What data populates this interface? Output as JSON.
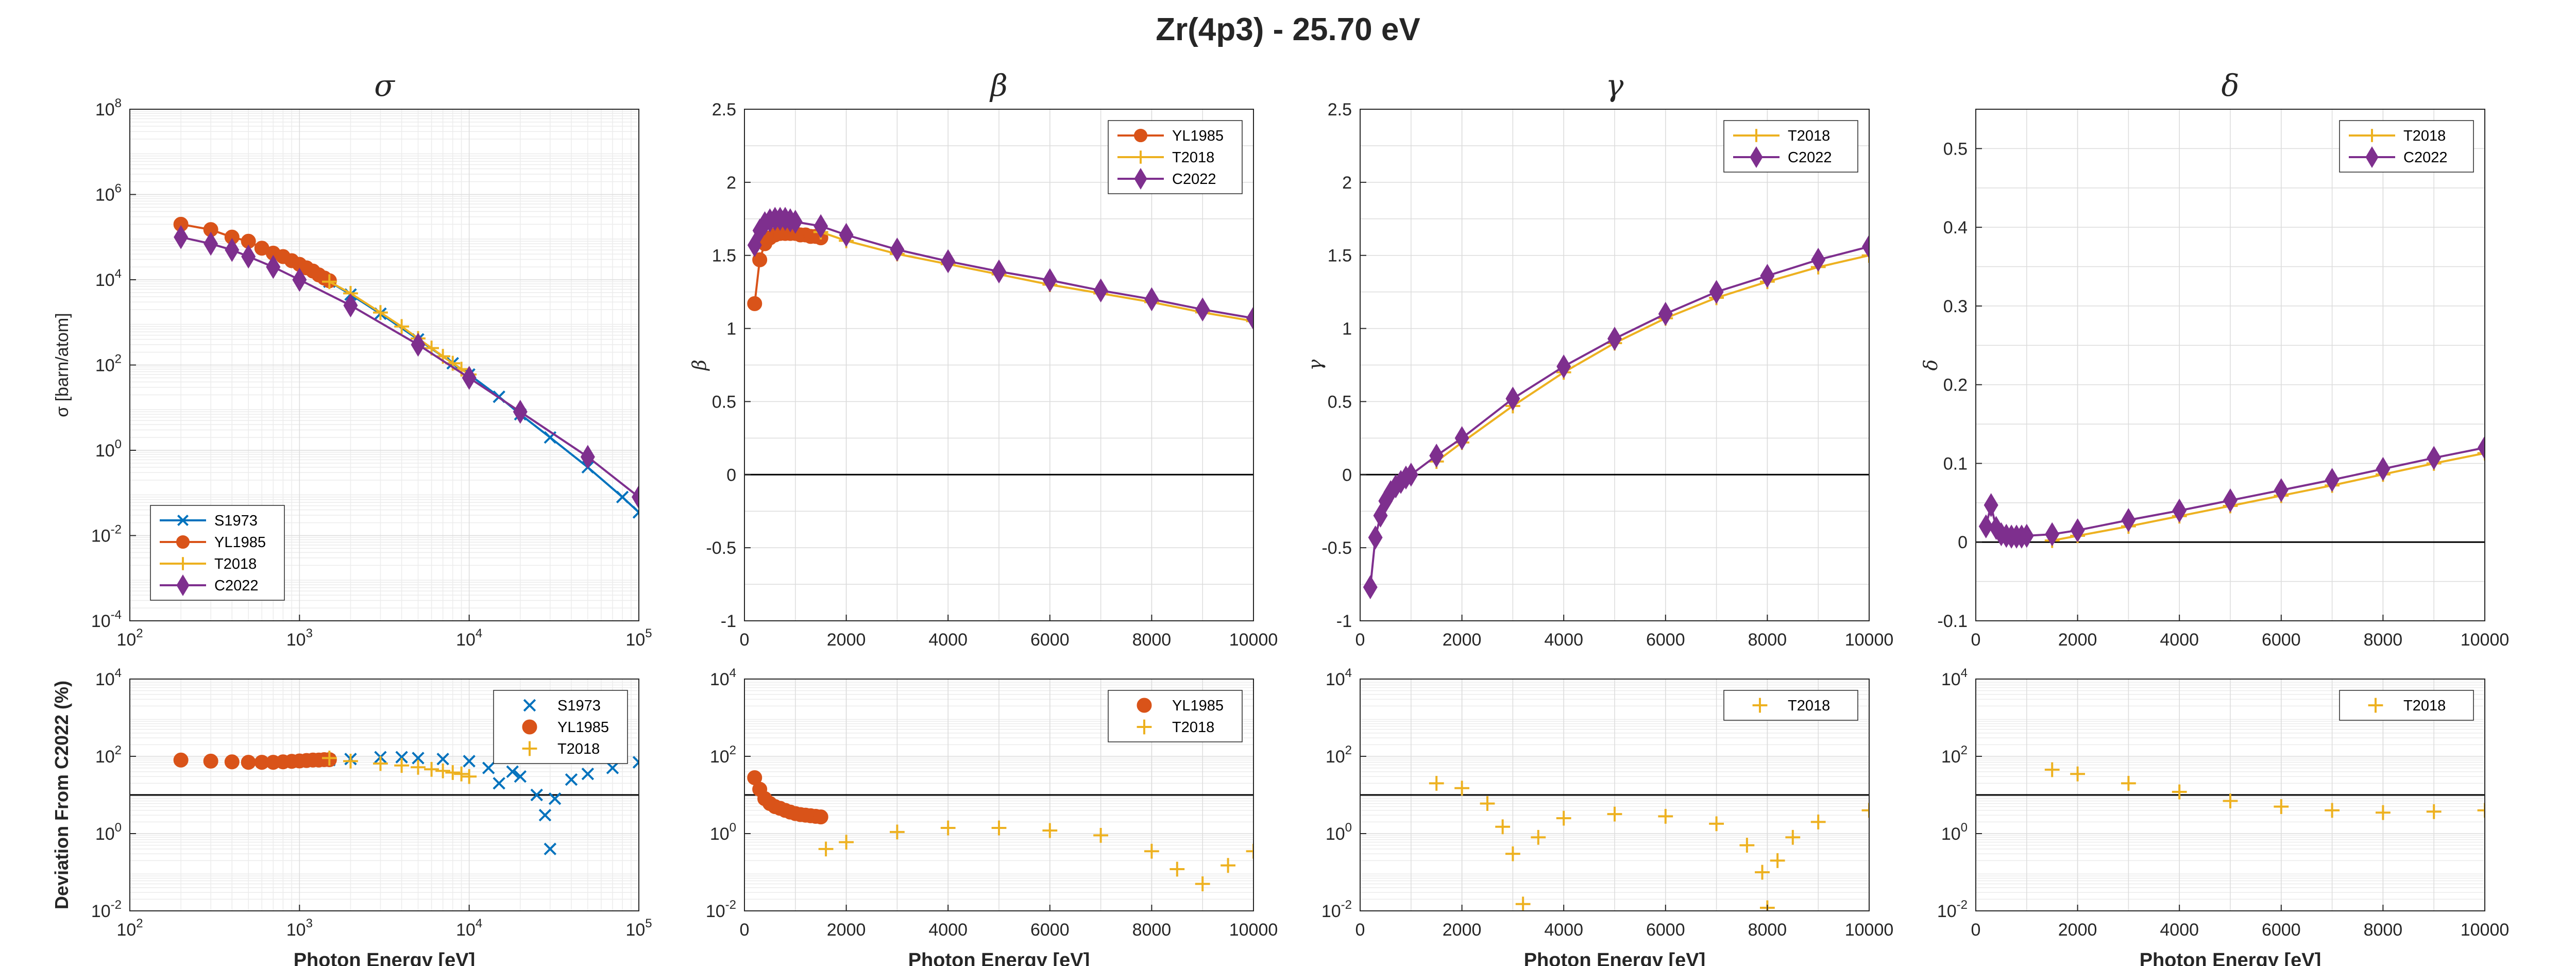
{
  "figure": {
    "title": "Zr(4p3) - 25.70 eV",
    "xlabel": "Photon Energy [eV]",
    "ylabel_cs": "σ [barn/atom]",
    "ylabel_dev": "Deviation From C2022 (%)"
  },
  "colors": {
    "S1973": "#0072BD",
    "YL1985": "#D95319",
    "T2018": "#EDB120",
    "C2022": "#7E2F8E",
    "axis": "#262626",
    "grid": "#dcdcdc",
    "minor_band": "#f2f2f2",
    "zero_line": "#000000"
  },
  "chart_data": [
    {
      "id": "sigma",
      "type": "line",
      "title": "σ",
      "ylabel": "σ [barn/atom]",
      "xlabel": "",
      "xscale": "log",
      "yscale": "log",
      "xlim": [
        100,
        100000
      ],
      "ylim": [
        0.0001,
        100000000
      ],
      "xticks": [
        100,
        1000,
        10000,
        100000
      ],
      "xtick_labels": [
        "10|2",
        "10|3",
        "10|4",
        "10|5"
      ],
      "yticks": [
        0.0001,
        0.01,
        1,
        100,
        10000,
        1000000,
        100000000
      ],
      "ytick_labels": [
        "10|-4",
        "10|-2",
        "10|0",
        "10|2",
        "10|4",
        "10|6",
        "10|8"
      ],
      "legend": {
        "position": "bottom-left",
        "entries": [
          "S1973",
          "YL1985",
          "T2018",
          "C2022"
        ]
      },
      "series": [
        {
          "name": "S1973",
          "marker": "x",
          "x": [
            1500,
            2000,
            3000,
            5000,
            8000,
            10000,
            15000,
            20000,
            30000,
            50000,
            80000,
            100000
          ],
          "y": [
            9000,
            4500,
            1600,
            400,
            110,
            60,
            18,
            7,
            2,
            0.4,
            0.08,
            0.035
          ]
        },
        {
          "name": "YL1985",
          "marker": "o",
          "x": [
            200,
            300,
            400,
            500,
            600,
            700,
            800,
            900,
            1000,
            1100,
            1200,
            1300,
            1400,
            1500
          ],
          "y": [
            200000,
            150000,
            100000,
            80000,
            55000,
            42000,
            35000,
            28000,
            23000,
            19000,
            16000,
            13000,
            11000,
            9500
          ]
        },
        {
          "name": "T2018",
          "marker": "+",
          "x": [
            1500,
            2000,
            3000,
            4000,
            5000,
            6000,
            7000,
            8000,
            9000,
            10000
          ],
          "y": [
            9000,
            4800,
            1700,
            800,
            420,
            250,
            160,
            110,
            80,
            60
          ]
        },
        {
          "name": "C2022",
          "marker": "d",
          "x": [
            200,
            300,
            400,
            500,
            700,
            1000,
            2000,
            5000,
            10000,
            20000,
            50000,
            100000
          ],
          "y": [
            100000,
            70000,
            50000,
            35000,
            20000,
            10000,
            2500,
            300,
            50,
            8,
            0.7,
            0.08
          ]
        }
      ]
    },
    {
      "id": "beta",
      "type": "line",
      "title": "β",
      "ylabel": "β",
      "xlabel": "",
      "xscale": "linear",
      "yscale": "linear",
      "xlim": [
        0,
        10000
      ],
      "ylim": [
        -1,
        2.5
      ],
      "xticks": [
        0,
        2000,
        4000,
        6000,
        8000,
        10000
      ],
      "xtick_labels": [
        "0",
        "2000",
        "4000",
        "6000",
        "8000",
        "10000"
      ],
      "yticks": [
        -1,
        -0.5,
        0,
        0.5,
        1,
        1.5,
        2,
        2.5
      ],
      "ytick_labels": [
        "-1",
        "-0.5",
        "0",
        "0.5",
        "1",
        "1.5",
        "2",
        "2.5"
      ],
      "hline": 0,
      "legend": {
        "position": "top-right",
        "entries": [
          "YL1985",
          "T2018",
          "C2022"
        ]
      },
      "series": [
        {
          "name": "YL1985",
          "marker": "o",
          "x": [
            200,
            300,
            400,
            500,
            600,
            700,
            800,
            900,
            1000,
            1100,
            1200,
            1300,
            1400,
            1500
          ],
          "y": [
            1.17,
            1.47,
            1.58,
            1.62,
            1.64,
            1.65,
            1.65,
            1.65,
            1.65,
            1.64,
            1.64,
            1.63,
            1.63,
            1.62
          ]
        },
        {
          "name": "T2018",
          "marker": "+",
          "x": [
            1500,
            2000,
            3000,
            4000,
            5000,
            6000,
            7000,
            8000,
            9000,
            10000
          ],
          "y": [
            1.66,
            1.6,
            1.51,
            1.44,
            1.37,
            1.3,
            1.24,
            1.18,
            1.11,
            1.05
          ]
        },
        {
          "name": "C2022",
          "marker": "d",
          "x": [
            200,
            300,
            400,
            500,
            600,
            700,
            800,
            900,
            1000,
            1500,
            2000,
            3000,
            4000,
            5000,
            6000,
            7000,
            8000,
            9000,
            10000
          ],
          "y": [
            1.57,
            1.67,
            1.72,
            1.74,
            1.75,
            1.75,
            1.75,
            1.74,
            1.73,
            1.7,
            1.64,
            1.54,
            1.46,
            1.39,
            1.33,
            1.26,
            1.2,
            1.13,
            1.07
          ]
        }
      ]
    },
    {
      "id": "gamma",
      "type": "line",
      "title": "γ",
      "ylabel": "γ",
      "xlabel": "",
      "xscale": "linear",
      "yscale": "linear",
      "xlim": [
        0,
        10000
      ],
      "ylim": [
        -1,
        2.5
      ],
      "xticks": [
        0,
        2000,
        4000,
        6000,
        8000,
        10000
      ],
      "xtick_labels": [
        "0",
        "2000",
        "4000",
        "6000",
        "8000",
        "10000"
      ],
      "yticks": [
        -1,
        -0.5,
        0,
        0.5,
        1,
        1.5,
        2,
        2.5
      ],
      "ytick_labels": [
        "-1",
        "-0.5",
        "0",
        "0.5",
        "1",
        "1.5",
        "2",
        "2.5"
      ],
      "hline": 0,
      "legend": {
        "position": "top-right",
        "entries": [
          "T2018",
          "C2022"
        ]
      },
      "series": [
        {
          "name": "T2018",
          "marker": "+",
          "x": [
            1500,
            2000,
            3000,
            4000,
            5000,
            6000,
            7000,
            8000,
            9000,
            10000
          ],
          "y": [
            0.09,
            0.22,
            0.47,
            0.7,
            0.9,
            1.07,
            1.21,
            1.32,
            1.42,
            1.5
          ]
        },
        {
          "name": "C2022",
          "marker": "d",
          "x": [
            200,
            300,
            400,
            500,
            600,
            700,
            800,
            900,
            1000,
            1500,
            2000,
            3000,
            4000,
            5000,
            6000,
            7000,
            8000,
            9000,
            10000
          ],
          "y": [
            -0.77,
            -0.43,
            -0.28,
            -0.18,
            -0.12,
            -0.08,
            -0.05,
            -0.02,
            0.0,
            0.13,
            0.25,
            0.52,
            0.74,
            0.93,
            1.1,
            1.25,
            1.36,
            1.47,
            1.56
          ]
        }
      ]
    },
    {
      "id": "delta",
      "type": "line",
      "title": "δ",
      "ylabel": "δ",
      "xlabel": "",
      "xscale": "linear",
      "yscale": "linear",
      "xlim": [
        0,
        10000
      ],
      "ylim": [
        -0.1,
        0.55
      ],
      "xticks": [
        0,
        2000,
        4000,
        6000,
        8000,
        10000
      ],
      "xtick_labels": [
        "0",
        "2000",
        "4000",
        "6000",
        "8000",
        "10000"
      ],
      "yticks": [
        -0.1,
        0,
        0.1,
        0.2,
        0.3,
        0.4,
        0.5
      ],
      "ytick_labels": [
        "-0.1",
        "0",
        "0.1",
        "0.2",
        "0.3",
        "0.4",
        "0.5"
      ],
      "hline": 0,
      "legend": {
        "position": "top-right",
        "entries": [
          "T2018",
          "C2022"
        ]
      },
      "series": [
        {
          "name": "T2018",
          "marker": "+",
          "x": [
            1500,
            2000,
            3000,
            4000,
            5000,
            6000,
            7000,
            8000,
            9000,
            10000
          ],
          "y": [
            0.002,
            0.008,
            0.02,
            0.033,
            0.046,
            0.059,
            0.072,
            0.086,
            0.1,
            0.113
          ]
        },
        {
          "name": "C2022",
          "marker": "d",
          "x": [
            200,
            300,
            400,
            500,
            600,
            700,
            800,
            900,
            1000,
            1500,
            2000,
            3000,
            4000,
            5000,
            6000,
            7000,
            8000,
            9000,
            10000
          ],
          "y": [
            0.02,
            0.047,
            0.018,
            0.01,
            0.008,
            0.007,
            0.007,
            0.007,
            0.008,
            0.01,
            0.015,
            0.028,
            0.04,
            0.053,
            0.066,
            0.079,
            0.093,
            0.107,
            0.12
          ]
        }
      ]
    },
    {
      "id": "dev_sigma",
      "type": "scatter",
      "title": "",
      "ylabel": "Deviation From C2022 (%)",
      "xlabel": "Photon Energy [eV]",
      "xscale": "log",
      "yscale": "log",
      "xlim": [
        100,
        100000
      ],
      "ylim": [
        0.01,
        10000
      ],
      "xticks": [
        100,
        1000,
        10000,
        100000
      ],
      "xtick_labels": [
        "10|2",
        "10|3",
        "10|4",
        "10|5"
      ],
      "yticks": [
        0.01,
        1,
        100,
        10000
      ],
      "ytick_labels": [
        "10|-2",
        "10|0",
        "10|2",
        "10|4"
      ],
      "hline": 10,
      "legend": {
        "position": "top-right",
        "entries": [
          "S1973",
          "YL1985",
          "T2018"
        ]
      },
      "series": [
        {
          "name": "S1973",
          "marker": "x",
          "x": [
            1500,
            2000,
            3000,
            4000,
            5000,
            7000,
            10000,
            13000,
            15000,
            18000,
            20000,
            25000,
            28000,
            30000,
            32000,
            40000,
            50000,
            70000,
            100000
          ],
          "y": [
            80,
            85,
            95,
            95,
            90,
            85,
            75,
            50,
            20,
            40,
            30,
            10,
            3,
            0.4,
            8,
            25,
            35,
            50,
            70
          ]
        },
        {
          "name": "YL1985",
          "marker": "o",
          "x": [
            200,
            300,
            400,
            500,
            600,
            700,
            800,
            900,
            1000,
            1100,
            1200,
            1300,
            1400,
            1500
          ],
          "y": [
            80,
            75,
            72,
            70,
            70,
            70,
            72,
            74,
            76,
            78,
            80,
            80,
            82,
            82
          ]
        },
        {
          "name": "T2018",
          "marker": "+",
          "x": [
            1500,
            2000,
            3000,
            4000,
            5000,
            6000,
            7000,
            8000,
            9000,
            10000
          ],
          "y": [
            90,
            75,
            65,
            58,
            52,
            46,
            42,
            38,
            35,
            30
          ]
        }
      ]
    },
    {
      "id": "dev_beta",
      "type": "scatter",
      "title": "",
      "ylabel": "",
      "xlabel": "Photon Energy [eV]",
      "xscale": "linear",
      "yscale": "log",
      "xlim": [
        0,
        10000
      ],
      "ylim": [
        0.01,
        10000
      ],
      "xticks": [
        0,
        2000,
        4000,
        6000,
        8000,
        10000
      ],
      "xtick_labels": [
        "0",
        "2000",
        "4000",
        "6000",
        "8000",
        "10000"
      ],
      "yticks": [
        0.01,
        1,
        100,
        10000
      ],
      "ytick_labels": [
        "10|-2",
        "10|0",
        "10|2",
        "10|4"
      ],
      "hline": 10,
      "legend": {
        "position": "top-right",
        "entries": [
          "YL1985",
          "T2018"
        ]
      },
      "series": [
        {
          "name": "YL1985",
          "marker": "o",
          "x": [
            200,
            300,
            400,
            500,
            600,
            700,
            800,
            900,
            1000,
            1100,
            1200,
            1300,
            1400,
            1500
          ],
          "y": [
            28,
            14,
            8,
            6,
            5,
            4.5,
            4,
            3.6,
            3.3,
            3.1,
            3,
            2.9,
            2.8,
            2.7
          ]
        },
        {
          "name": "T2018",
          "marker": "+",
          "x": [
            1600,
            2000,
            3000,
            4000,
            5000,
            6000,
            7000,
            8000,
            8500,
            9000,
            9500,
            10000
          ],
          "y": [
            0.4,
            0.6,
            1.1,
            1.4,
            1.4,
            1.2,
            0.9,
            0.35,
            0.12,
            0.05,
            0.15,
            0.35
          ]
        }
      ]
    },
    {
      "id": "dev_gamma",
      "type": "scatter",
      "title": "",
      "ylabel": "",
      "xlabel": "Photon Energy [eV]",
      "xscale": "linear",
      "yscale": "log",
      "xlim": [
        0,
        10000
      ],
      "ylim": [
        0.01,
        10000
      ],
      "xticks": [
        0,
        2000,
        4000,
        6000,
        8000,
        10000
      ],
      "xtick_labels": [
        "0",
        "2000",
        "4000",
        "6000",
        "8000",
        "10000"
      ],
      "yticks": [
        0.01,
        1,
        100,
        10000
      ],
      "ytick_labels": [
        "10|-2",
        "10|0",
        "10|2",
        "10|4"
      ],
      "hline": 10,
      "legend": {
        "position": "top-right",
        "entries": [
          "T2018"
        ]
      },
      "series": [
        {
          "name": "T2018",
          "marker": "+",
          "x": [
            1500,
            2000,
            2500,
            2800,
            3000,
            3200,
            3500,
            4000,
            5000,
            6000,
            7000,
            7600,
            7900,
            8000,
            8200,
            8500,
            9000,
            10000
          ],
          "y": [
            20,
            15,
            6,
            1.5,
            0.3,
            0.015,
            0.8,
            2.5,
            3.2,
            2.8,
            1.8,
            0.5,
            0.1,
            0.012,
            0.2,
            0.8,
            2.0,
            4.0
          ]
        }
      ]
    },
    {
      "id": "dev_delta",
      "type": "scatter",
      "title": "",
      "ylabel": "",
      "xlabel": "Photon Energy [eV]",
      "xscale": "linear",
      "yscale": "log",
      "xlim": [
        0,
        10000
      ],
      "ylim": [
        0.01,
        10000
      ],
      "xticks": [
        0,
        2000,
        4000,
        6000,
        8000,
        10000
      ],
      "xtick_labels": [
        "0",
        "2000",
        "4000",
        "6000",
        "8000",
        "10000"
      ],
      "yticks": [
        0.01,
        1,
        100,
        10000
      ],
      "ytick_labels": [
        "10|-2",
        "10|0",
        "10|2",
        "10|4"
      ],
      "hline": 10,
      "legend": {
        "position": "top-right",
        "entries": [
          "T2018"
        ]
      },
      "series": [
        {
          "name": "T2018",
          "marker": "+",
          "x": [
            1500,
            2000,
            3000,
            4000,
            5000,
            6000,
            7000,
            8000,
            9000,
            10000
          ],
          "y": [
            45,
            35,
            20,
            12,
            7,
            5,
            4,
            3.5,
            3.7,
            4.0
          ]
        }
      ]
    }
  ]
}
